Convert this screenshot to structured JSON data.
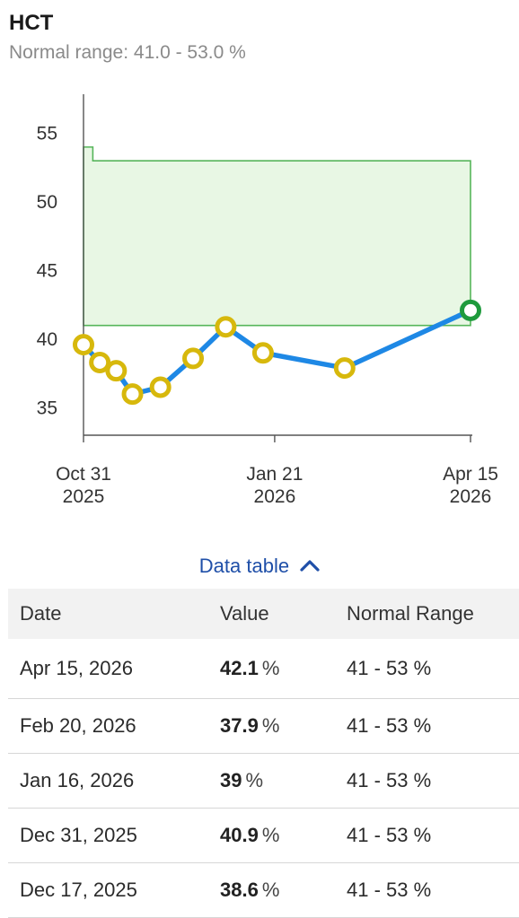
{
  "header": {
    "title": "HCT",
    "subtitle": "Normal range: 41.0 - 53.0 %"
  },
  "chart_data": {
    "type": "line",
    "title": "HCT",
    "unit": "%",
    "x_axis": {
      "type": "date",
      "ticks": [
        {
          "date": "2025-10-31",
          "line1": "Oct 31",
          "line2": "2025"
        },
        {
          "date": "2026-01-21",
          "line1": "Jan 21",
          "line2": "2026"
        },
        {
          "date": "2026-04-15",
          "line1": "Apr 15",
          "line2": "2026"
        }
      ],
      "range": [
        "2025-10-31",
        "2026-04-15"
      ]
    },
    "y_axis": {
      "ticks": [
        35,
        40,
        45,
        50,
        55
      ],
      "range": [
        33,
        57
      ]
    },
    "normal_range_band": {
      "segments": [
        {
          "from": "2025-10-31",
          "to": "2025-11-04",
          "low": 41,
          "high": 54
        },
        {
          "from": "2025-11-04",
          "to": "2026-04-15",
          "low": 41,
          "high": 53
        }
      ],
      "color": "#e8f7e4",
      "stroke": "#56b55a"
    },
    "series": [
      {
        "line_color": "#1e88e5",
        "points": [
          {
            "date": "2025-10-31",
            "value": 39.6,
            "color": "#d7b80c"
          },
          {
            "date": "2025-11-07",
            "value": 38.3,
            "color": "#d7b80c"
          },
          {
            "date": "2025-11-14",
            "value": 37.7,
            "color": "#d7b80c"
          },
          {
            "date": "2025-11-21",
            "value": 36.0,
            "color": "#d7b80c"
          },
          {
            "date": "2025-12-03",
            "value": 36.5,
            "color": "#d7b80c"
          },
          {
            "date": "2025-12-17",
            "value": 38.6,
            "color": "#d7b80c"
          },
          {
            "date": "2025-12-31",
            "value": 40.9,
            "color": "#d7b80c"
          },
          {
            "date": "2026-01-16",
            "value": 39.0,
            "color": "#d7b80c"
          },
          {
            "date": "2026-02-20",
            "value": 37.9,
            "color": "#d7b80c"
          },
          {
            "date": "2026-04-15",
            "value": 42.1,
            "color": "#1e9a3c"
          }
        ]
      }
    ]
  },
  "data_table": {
    "toggle_label": "Data table",
    "columns": [
      "Date",
      "Value",
      "Normal Range"
    ],
    "rows": [
      {
        "date": "Apr 15, 2026",
        "value": "42.1",
        "unit": "%",
        "range": "41 - 53 %"
      },
      {
        "date": "Feb 20, 2026",
        "value": "37.9",
        "unit": "%",
        "range": "41 - 53 %"
      },
      {
        "date": "Jan 16, 2026",
        "value": "39",
        "unit": "%",
        "range": "41 - 53 %"
      },
      {
        "date": "Dec 31, 2025",
        "value": "40.9",
        "unit": "%",
        "range": "41 - 53 %"
      },
      {
        "date": "Dec 17, 2025",
        "value": "38.6",
        "unit": "%",
        "range": "41 - 53 %"
      }
    ]
  }
}
